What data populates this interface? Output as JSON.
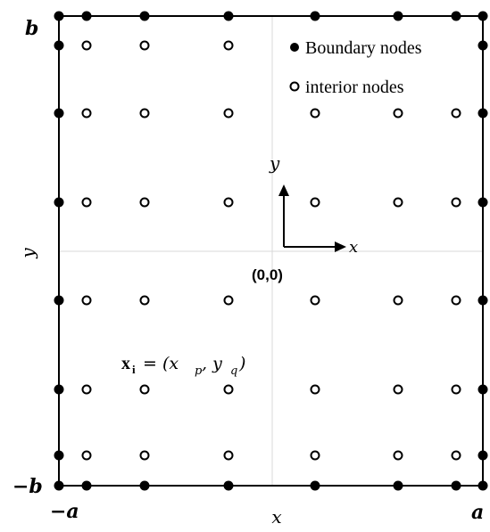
{
  "diagram": {
    "corner_labels": {
      "b": "b",
      "neg_b": "−b",
      "neg_a": "−a",
      "a": "a"
    },
    "axis_labels": {
      "y_side": "y",
      "x_bottom": "x"
    },
    "center": {
      "origin_label": "(0,0)",
      "x_arrow_label": "x",
      "y_arrow_label": "y"
    },
    "legend": {
      "boundary": "Boundary nodes",
      "interior": "interior nodes"
    },
    "formula": {
      "bold_part": "x",
      "subscript": "i",
      "rest": "= (x",
      "p": "p",
      "comma_y": ", y",
      "q": "q",
      "close": ")"
    },
    "colors": {
      "node_fill": "#000000",
      "line": "#000000",
      "grid": "#cccccc"
    }
  }
}
